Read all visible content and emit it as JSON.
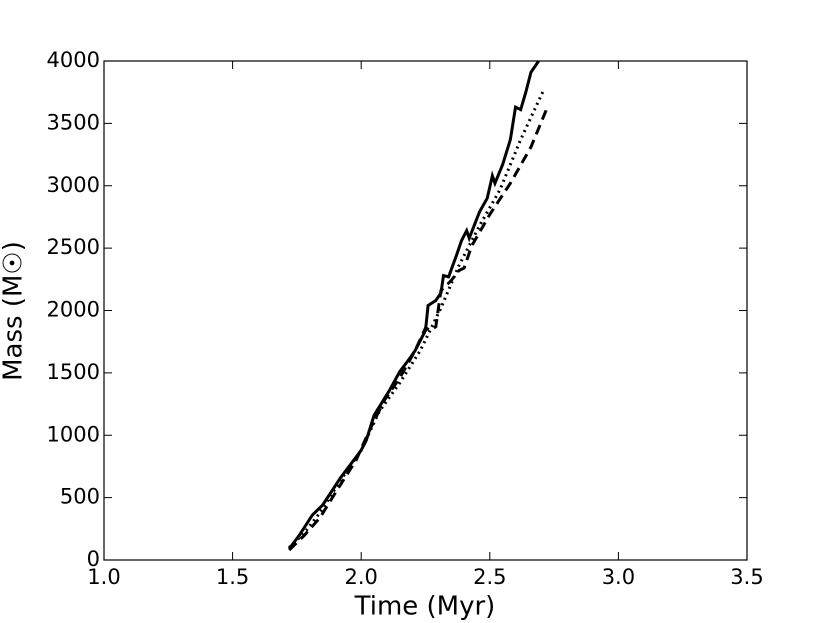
{
  "chart_data": {
    "type": "line",
    "xlabel": "Time (Myr)",
    "ylabel": "Mass (M☉)",
    "xlim": [
      1.0,
      3.5
    ],
    "xticks": [
      {
        "value": 1,
        "label": "1.0"
      },
      1.5,
      {
        "value": 2,
        "label": "2.0"
      },
      2.5,
      {
        "value": 3,
        "label": "3.0"
      },
      3.5
    ],
    "ylim": [
      0,
      4000
    ],
    "yticks": [
      0,
      500,
      1000,
      1500,
      2000,
      2500,
      3000,
      3500,
      4000
    ],
    "grid": false,
    "series": [
      {
        "color": "#000000",
        "linestyle": "solid",
        "x": [
          1.72,
          1.76,
          1.81,
          1.85,
          1.92,
          2.0,
          2.02,
          2.05,
          2.11,
          2.15,
          2.19,
          2.21,
          2.25,
          2.26,
          2.29,
          2.31,
          2.32,
          2.34,
          2.37,
          2.39,
          2.41,
          2.42,
          2.46,
          2.49,
          2.51,
          2.52,
          2.55,
          2.58,
          2.6,
          2.62,
          2.64,
          2.66,
          2.69
        ],
        "values": [
          90,
          200,
          360,
          440,
          660,
          880,
          960,
          1160,
          1360,
          1510,
          1620,
          1680,
          1840,
          2040,
          2080,
          2140,
          2280,
          2270,
          2440,
          2560,
          2640,
          2580,
          2790,
          2900,
          3080,
          3020,
          3170,
          3370,
          3630,
          3610,
          3750,
          3910,
          4000
        ]
      },
      {
        "color": "#000000",
        "linestyle": "dashed",
        "x": [
          1.72,
          1.78,
          1.84,
          1.9,
          1.98,
          2.03,
          2.09,
          2.15,
          2.21,
          2.25,
          2.27,
          2.29,
          2.31,
          2.35,
          2.38,
          2.4,
          2.43,
          2.5,
          2.58,
          2.66,
          2.72
        ],
        "values": [
          80,
          200,
          340,
          540,
          800,
          1030,
          1280,
          1460,
          1680,
          1860,
          1840,
          1870,
          2160,
          2240,
          2320,
          2340,
          2520,
          2770,
          3020,
          3310,
          3610
        ]
      },
      {
        "color": "#000000",
        "linestyle": "dotted",
        "x": [
          1.72,
          1.78,
          1.84,
          1.92,
          2.0,
          2.07,
          2.15,
          2.23,
          2.31,
          2.38,
          2.46,
          2.54,
          2.62,
          2.71
        ],
        "values": [
          100,
          220,
          380,
          640,
          880,
          1190,
          1420,
          1680,
          2020,
          2360,
          2680,
          2970,
          3370,
          3770
        ]
      }
    ]
  }
}
